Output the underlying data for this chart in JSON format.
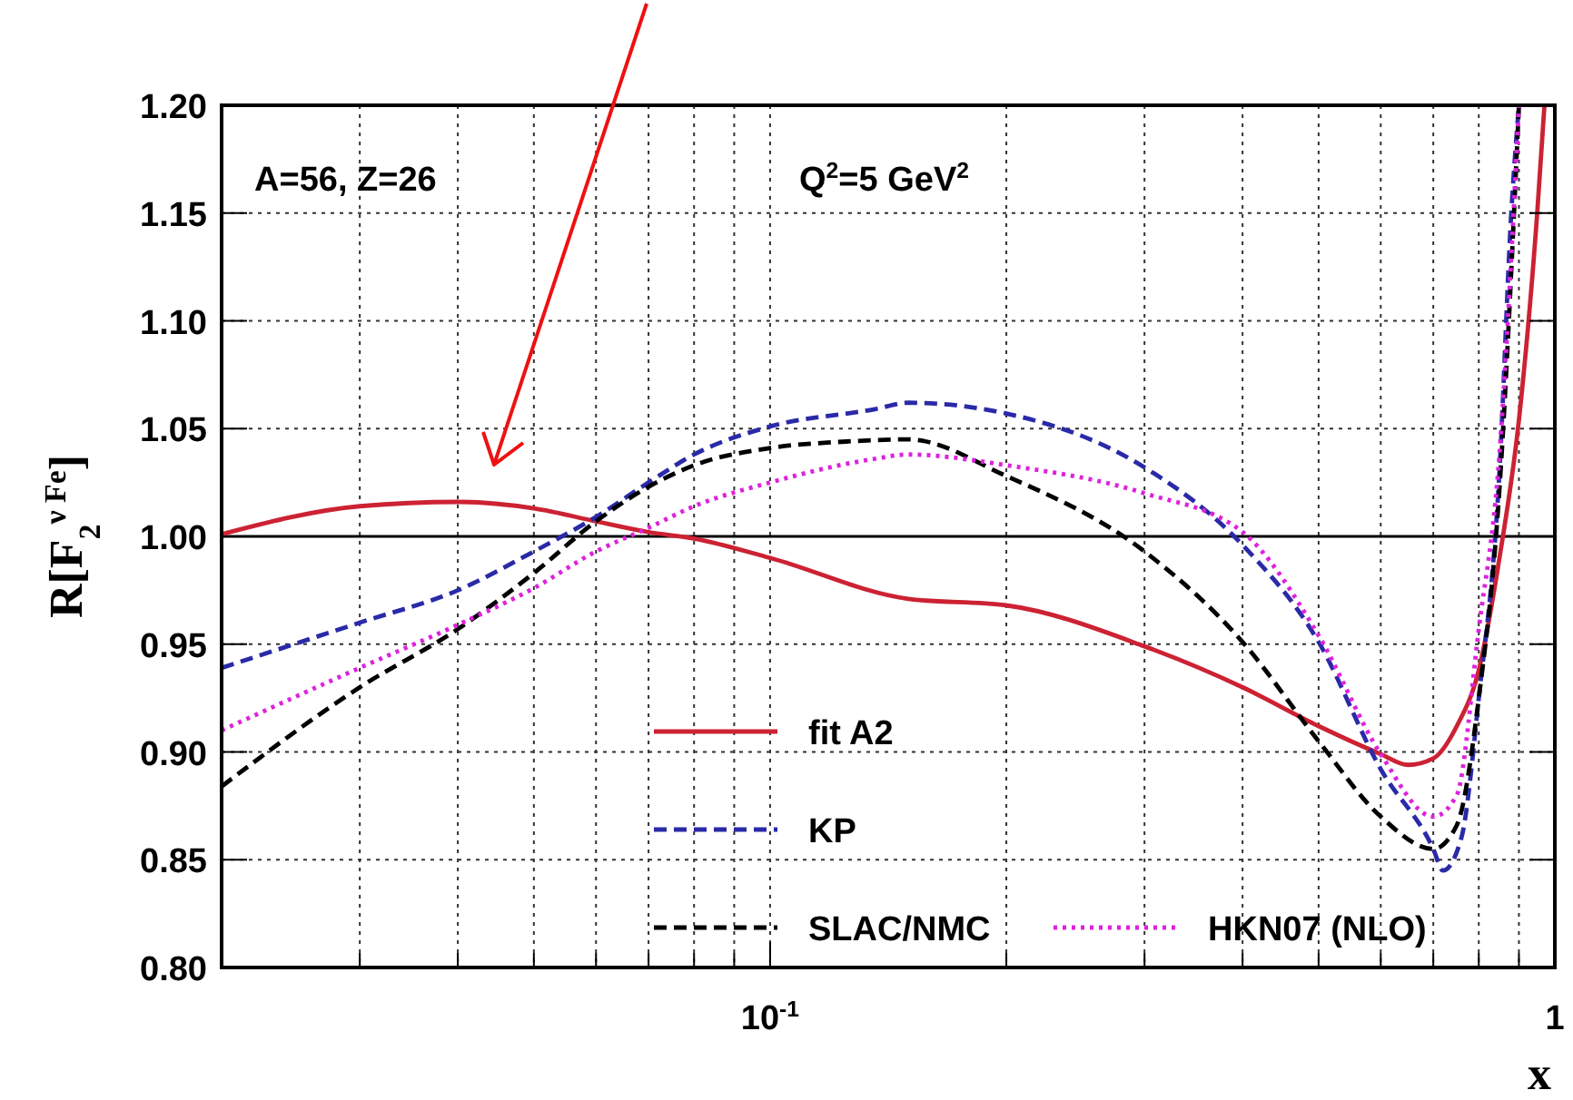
{
  "chart_data": {
    "type": "line",
    "xlabel": "x",
    "ylabel": "R[F$_{2}$$^{ν Fe}$]",
    "annotations": [
      "A=56, Z=26",
      "Q$^{2}$=5 GeV$^{2}$"
    ],
    "log": "x",
    "xlim": [
      0.02,
      1
    ],
    "xticks": [
      {
        "value": 0.02,
        "label": null
      },
      {
        "value": 0.03,
        "label": null
      },
      {
        "value": 0.04,
        "label": null
      },
      {
        "value": 0.05,
        "label": null
      },
      {
        "value": 0.06,
        "label": null
      },
      {
        "value": 0.07,
        "label": null
      },
      {
        "value": 0.08,
        "label": null
      },
      {
        "value": 0.09,
        "label": null
      },
      {
        "value": 0.1,
        "label": "10$^{-1}$"
      },
      {
        "value": 0.2,
        "label": null
      },
      {
        "value": 0.3,
        "label": null
      },
      {
        "value": 0.4,
        "label": null
      },
      {
        "value": 0.5,
        "label": null
      },
      {
        "value": 0.6,
        "label": null
      },
      {
        "value": 0.7,
        "label": null
      },
      {
        "value": 0.8,
        "label": null
      },
      {
        "value": 0.9,
        "label": null
      },
      {
        "value": 1,
        "label": "1"
      }
    ],
    "ylim": [
      0.8,
      1.2
    ],
    "yticks": [
      {
        "value": 0.8,
        "label": "0.80"
      },
      {
        "value": 0.85,
        "label": "0.85"
      },
      {
        "value": 0.9,
        "label": "0.90"
      },
      {
        "value": 0.95,
        "label": "0.95"
      },
      {
        "value": 1,
        "label": "1.00"
      },
      {
        "value": 1.05,
        "label": "1.05"
      },
      {
        "value": 1.1,
        "label": "1.10"
      },
      {
        "value": 1.15,
        "label": "1.15"
      },
      {
        "value": 1.2,
        "label": "1.20"
      }
    ],
    "grid": true,
    "legend": "bottom",
    "ref_lines": [
      {
        "axis": "y",
        "value": 1,
        "line_style": "solid",
        "color": "#000000"
      }
    ],
    "series": [
      {
        "name": "fit A2",
        "color": "#cc2233",
        "line_style": "solid",
        "x": [
          0.02,
          0.03,
          0.04,
          0.05,
          0.06,
          0.07,
          0.08,
          0.1,
          0.15,
          0.2,
          0.3,
          0.4,
          0.5,
          0.6,
          0.65,
          0.7,
          0.75,
          0.8,
          0.85,
          0.9,
          0.95,
          0.97
        ],
        "values": [
          1.001,
          1.014,
          1.016,
          1.013,
          1.007,
          1.002,
          0.999,
          0.99,
          0.971,
          0.968,
          0.949,
          0.93,
          0.912,
          0.899,
          0.894,
          0.897,
          0.912,
          0.938,
          0.99,
          1.054,
          1.151,
          1.2
        ]
      },
      {
        "name": "KP",
        "color": "#2a2aa8",
        "line_style": "dashed",
        "x": [
          0.02,
          0.03,
          0.04,
          0.05,
          0.06,
          0.07,
          0.08,
          0.1,
          0.136,
          0.15,
          0.2,
          0.3,
          0.4,
          0.5,
          0.6,
          0.7,
          0.72,
          0.76,
          0.8,
          0.85,
          0.88,
          0.9
        ],
        "values": [
          0.939,
          0.96,
          0.975,
          0.993,
          1.009,
          1.025,
          1.038,
          1.051,
          1.059,
          1.062,
          1.057,
          1.032,
          0.996,
          0.951,
          0.892,
          0.855,
          0.845,
          0.86,
          0.925,
          1.03,
          1.15,
          1.2
        ]
      },
      {
        "name": "SLAC/NMC",
        "color": "#000000",
        "line_style": "dashed",
        "x": [
          0.02,
          0.03,
          0.04,
          0.05,
          0.06,
          0.07,
          0.08,
          0.1,
          0.125,
          0.15,
          0.2,
          0.3,
          0.4,
          0.5,
          0.6,
          0.7,
          0.75,
          0.8,
          0.85,
          0.9
        ],
        "values": [
          0.884,
          0.93,
          0.957,
          0.983,
          1.007,
          1.023,
          1.033,
          1.041,
          1.044,
          1.045,
          1.028,
          0.993,
          0.951,
          0.905,
          0.87,
          0.855,
          0.866,
          0.925,
          1.022,
          1.2
        ]
      },
      {
        "name": "HKN07 (NLO)",
        "color": "#dd22dd",
        "line_style": "dotted",
        "x": [
          0.02,
          0.03,
          0.04,
          0.05,
          0.06,
          0.07,
          0.08,
          0.1,
          0.136,
          0.15,
          0.2,
          0.3,
          0.4,
          0.5,
          0.6,
          0.7,
          0.75,
          0.8,
          0.85,
          0.9
        ],
        "values": [
          0.91,
          0.939,
          0.959,
          0.976,
          0.993,
          1.004,
          1.014,
          1.025,
          1.036,
          1.038,
          1.033,
          1.02,
          1.002,
          0.954,
          0.899,
          0.87,
          0.88,
          0.957,
          1.038,
          1.2
        ]
      }
    ]
  }
}
